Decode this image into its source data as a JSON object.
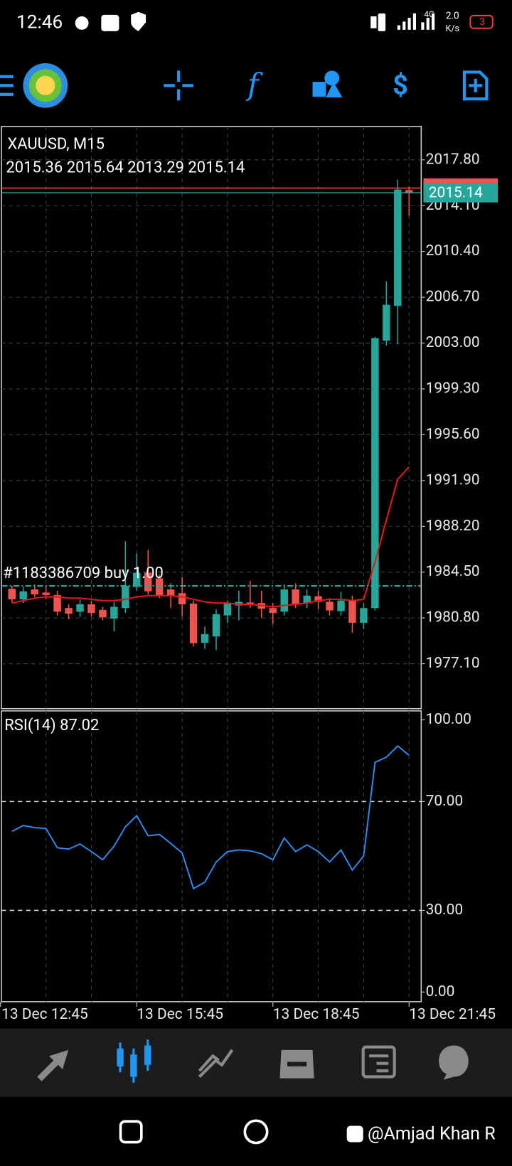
{
  "status_bar": {
    "time": "12:46",
    "network": "4G",
    "speed": "2.0",
    "speed_unit": "K/s",
    "battery": "3"
  },
  "watermark": "@Amjad Khan R",
  "chart_data": [
    {
      "type": "candlestick",
      "title": "XAUUSD, M15",
      "up_color": "#26a69a",
      "down_color": "#ef5350",
      "open": [
        1983.15,
        1982.3,
        1983.1,
        1982.85,
        1982.65,
        1981.6,
        1981.3,
        1981.9,
        1981.45,
        1980.75,
        1981.6,
        1983.3,
        1984.45,
        1984.0,
        1983.1,
        1982.8,
        1981.95,
        1978.8,
        1979.3,
        1981.0,
        1981.8,
        1982.05,
        1982.0,
        1981.6,
        1981.3,
        1983.1,
        1982.0,
        1982.55,
        1982.1,
        1981.35,
        1982.2,
        1980.4,
        1981.6,
        2003.2,
        2006.0,
        2015.36
      ],
      "high": [
        1983.4,
        1983.3,
        1983.5,
        1983.4,
        1983.0,
        1981.9,
        1982.3,
        1982.2,
        1981.7,
        1982.1,
        1987.0,
        1986.0,
        1986.3,
        1984.3,
        1983.6,
        1984.1,
        1982.2,
        1980.1,
        1981.5,
        1982.2,
        1983.0,
        1983.8,
        1983.0,
        1982.0,
        1983.5,
        1983.6,
        1983.1,
        1983.0,
        1982.4,
        1982.9,
        1982.6,
        1982.0,
        2003.5,
        2008.0,
        2016.2,
        2015.64
      ],
      "low": [
        1982.05,
        1982.0,
        1982.5,
        1982.3,
        1981.0,
        1980.7,
        1980.9,
        1980.9,
        1980.6,
        1979.7,
        1981.2,
        1983.0,
        1982.7,
        1982.4,
        1981.6,
        1980.9,
        1978.5,
        1978.3,
        1978.2,
        1980.4,
        1980.6,
        1981.6,
        1980.8,
        1980.3,
        1981.0,
        1981.6,
        1981.6,
        1981.5,
        1981.0,
        1981.0,
        1979.6,
        1979.9,
        1981.4,
        2002.8,
        2002.9,
        2013.29
      ],
      "close": [
        1982.3,
        1982.95,
        1982.7,
        1982.65,
        1981.3,
        1981.15,
        1981.9,
        1981.2,
        1980.85,
        1981.7,
        1983.4,
        1984.45,
        1982.95,
        1982.6,
        1982.6,
        1981.9,
        1978.76,
        1979.5,
        1981.1,
        1981.95,
        1982.1,
        1981.95,
        1981.55,
        1981.2,
        1983.1,
        1981.9,
        1982.6,
        1982.1,
        1981.4,
        1982.2,
        1980.4,
        1981.6,
        2003.4,
        2006.1,
        2015.4,
        2015.14
      ],
      "moving_average": {
        "color": "#e01818",
        "values": [
          1982.0,
          1982.2,
          1982.4,
          1982.5,
          1982.5,
          1982.4,
          1982.4,
          1982.3,
          1982.2,
          1982.2,
          1982.3,
          1982.5,
          1982.6,
          1982.6,
          1982.6,
          1982.5,
          1982.3,
          1982.1,
          1982.0,
          1982.0,
          1981.9,
          1981.9,
          1981.8,
          1981.7,
          1981.8,
          1981.9,
          1982.0,
          1982.2,
          1982.3,
          1982.3,
          1982.2,
          1982.3,
          1985.3,
          1988.7,
          1992.0,
          1993.0
        ]
      },
      "bid": 2015.14,
      "bid_color": "#26a69a",
      "ask": 2015.52,
      "ask_color": "#ef5350",
      "order": {
        "label": "#1183386709 buy 1.00",
        "price": 1983.39,
        "color": "#26a69a"
      },
      "xlim": [
        -0.92,
        36.07
      ],
      "xticks": [
        {
          "value": -1,
          "label": "13 Dec 12:45"
        },
        {
          "value": 11,
          "label": "13 Dec 15:45"
        },
        {
          "value": 23,
          "label": "13 Dec 18:45"
        },
        {
          "value": 35,
          "label": "13 Dec 21:45"
        }
      ],
      "xgrid": [
        3,
        7,
        11,
        15,
        19,
        23,
        27,
        31,
        35
      ],
      "ylim": [
        1973.47,
        2020.5
      ],
      "yticks": [
        {
          "value": 2017.8,
          "label": "2017.80"
        },
        {
          "value": 2014.1,
          "label": "2014.10"
        },
        {
          "value": 2010.4,
          "label": "2010.40"
        },
        {
          "value": 2006.7,
          "label": "2006.70"
        },
        {
          "value": 2003,
          "label": "2003.00"
        },
        {
          "value": 1999.3,
          "label": "1999.30"
        },
        {
          "value": 1995.6,
          "label": "1995.60"
        },
        {
          "value": 1991.9,
          "label": "1991.90"
        },
        {
          "value": 1988.2,
          "label": "1988.20"
        },
        {
          "value": 1984.5,
          "label": "1984.50"
        },
        {
          "value": 1980.8,
          "label": "1980.80"
        },
        {
          "value": 1977.1,
          "label": "1977.10"
        }
      ],
      "grid": true
    },
    {
      "type": "line",
      "title": "RSI(14)",
      "color": "#2f8ff0",
      "values": [
        59,
        61.2,
        60.4,
        60.1,
        53,
        52.5,
        54.4,
        51.6,
        48.6,
        53.6,
        60.7,
        64.8,
        57.4,
        57.9,
        54.6,
        51.1,
        38,
        40.4,
        47.8,
        51.6,
        52.2,
        51.9,
        50.8,
        48.6,
        56.6,
        51.6,
        54.1,
        51.6,
        47.8,
        52.2,
        44.8,
        50,
        84.4,
        86.3,
        90.4,
        87.02
      ],
      "ylim": [
        -3.55,
        103.3
      ],
      "yticks": [
        {
          "value": 100,
          "label": "100.00"
        },
        {
          "value": 70,
          "label": "70.00"
        },
        {
          "value": 30,
          "label": "30.00"
        },
        {
          "value": 0,
          "label": "0.00"
        }
      ],
      "levels": [
        70,
        30
      ]
    }
  ]
}
